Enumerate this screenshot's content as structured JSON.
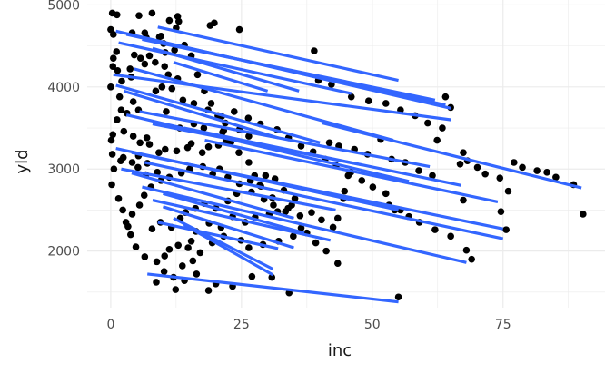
{
  "chart_data": {
    "type": "scatter",
    "xlabel": "inc",
    "ylabel": "yld",
    "xlim": [
      -4.5,
      94.5
    ],
    "ylim": [
      1310,
      5060
    ],
    "grid": true,
    "legend": "none",
    "x_ticks": [
      0,
      25,
      50,
      75
    ],
    "y_ticks": [
      2000,
      3000,
      4000,
      5000
    ],
    "x_tick_labels": [
      "0",
      "25",
      "50",
      "75"
    ],
    "y_tick_labels": [
      "2000",
      "3000",
      "4000",
      "5000"
    ],
    "point_color": "#000000",
    "line_color": "#3366FF",
    "panel_background": "#FFFFFF",
    "grid_color": "#EBEBEB",
    "points": [
      [
        0.3,
        4900
      ],
      [
        1.2,
        4880
      ],
      [
        5.4,
        4870
      ],
      [
        7.9,
        4900
      ],
      [
        12.8,
        4860
      ],
      [
        13,
        4800
      ],
      [
        19.8,
        4780
      ],
      [
        19,
        4750
      ],
      [
        24.6,
        4700
      ],
      [
        0,
        4700
      ],
      [
        0.5,
        4640
      ],
      [
        4.1,
        4660
      ],
      [
        6.5,
        4660
      ],
      [
        6.8,
        4600
      ],
      [
        9.3,
        4610
      ],
      [
        9.6,
        4620
      ],
      [
        10.1,
        4530
      ],
      [
        12.2,
        4450
      ],
      [
        10.4,
        4420
      ],
      [
        7.4,
        4380
      ],
      [
        4.5,
        4390
      ],
      [
        5.7,
        4350
      ],
      [
        1.1,
        4430
      ],
      [
        0.5,
        4350
      ],
      [
        0.4,
        4250
      ],
      [
        1.3,
        4200
      ],
      [
        3.7,
        4220
      ],
      [
        6.5,
        4280
      ],
      [
        8.5,
        4300
      ],
      [
        10.3,
        4250
      ],
      [
        11,
        4150
      ],
      [
        12.8,
        4100
      ],
      [
        9.8,
        4000
      ],
      [
        11.7,
        3980
      ],
      [
        8.6,
        3950
      ],
      [
        3.9,
        4120
      ],
      [
        2.1,
        4070
      ],
      [
        0,
        4000
      ],
      [
        1.7,
        3880
      ],
      [
        4.3,
        3820
      ],
      [
        5.3,
        3720
      ],
      [
        2,
        3720
      ],
      [
        3.1,
        3680
      ],
      [
        1.2,
        3600
      ],
      [
        10.6,
        3700
      ],
      [
        13.2,
        3500
      ],
      [
        15.9,
        3550
      ],
      [
        17.8,
        3500
      ],
      [
        21.4,
        3450
      ],
      [
        21.9,
        3560
      ],
      [
        24.6,
        3480
      ],
      [
        26.4,
        3400
      ],
      [
        22,
        3330
      ],
      [
        20.6,
        3290
      ],
      [
        18.7,
        3270
      ],
      [
        17.5,
        3200
      ],
      [
        15.4,
        3310
      ],
      [
        14.7,
        3260
      ],
      [
        12.6,
        3220
      ],
      [
        10.4,
        3240
      ],
      [
        9.2,
        3200
      ],
      [
        7.4,
        3300
      ],
      [
        6.9,
        3380
      ],
      [
        5.6,
        3320
      ],
      [
        4.3,
        3400
      ],
      [
        2.5,
        3460
      ],
      [
        0.4,
        3420
      ],
      [
        0.1,
        3350
      ],
      [
        0.3,
        3180
      ],
      [
        1.9,
        3100
      ],
      [
        4.1,
        3080
      ],
      [
        5.2,
        3020
      ],
      [
        6.7,
        2930
      ],
      [
        8.9,
        2960
      ],
      [
        9.6,
        2860
      ],
      [
        11.2,
        2900
      ],
      [
        13.5,
        2950
      ],
      [
        15.1,
        3000
      ],
      [
        17.6,
        3030
      ],
      [
        19.5,
        2940
      ],
      [
        20.8,
        3000
      ],
      [
        22.4,
        2900
      ],
      [
        24.6,
        2820
      ],
      [
        26.7,
        2860
      ],
      [
        28.5,
        2800
      ],
      [
        29.6,
        2920
      ],
      [
        31.4,
        2880
      ],
      [
        33.1,
        2740
      ],
      [
        35.2,
        2640
      ],
      [
        34.6,
        2560
      ],
      [
        31.9,
        2480
      ],
      [
        30.3,
        2450
      ],
      [
        27.6,
        2410
      ],
      [
        25.7,
        2350
      ],
      [
        23.3,
        2420
      ],
      [
        21.1,
        2290
      ],
      [
        18.8,
        2340
      ],
      [
        16.3,
        2240
      ],
      [
        15.4,
        2120
      ],
      [
        14.8,
        2040
      ],
      [
        12.9,
        2070
      ],
      [
        11.2,
        2020
      ],
      [
        10.3,
        1940
      ],
      [
        8.8,
        1870
      ],
      [
        6.5,
        1930
      ],
      [
        4.8,
        2050
      ],
      [
        3.8,
        2200
      ],
      [
        2.9,
        2350
      ],
      [
        2.3,
        2500
      ],
      [
        1.5,
        2640
      ],
      [
        0.2,
        2810
      ],
      [
        0.6,
        3000
      ],
      [
        2.4,
        3140
      ],
      [
        5.3,
        3160
      ],
      [
        7,
        3070
      ],
      [
        7.7,
        2780
      ],
      [
        6.4,
        2680
      ],
      [
        5.5,
        2560
      ],
      [
        4.1,
        2450
      ],
      [
        3.3,
        2300
      ],
      [
        7.9,
        2270
      ],
      [
        9.5,
        2350
      ],
      [
        11.6,
        2290
      ],
      [
        13.3,
        2400
      ],
      [
        14.3,
        2470
      ],
      [
        16.2,
        2520
      ],
      [
        17.9,
        2580
      ],
      [
        20.1,
        2520
      ],
      [
        22.4,
        2610
      ],
      [
        24.1,
        2700
      ],
      [
        26.9,
        2720
      ],
      [
        29.3,
        2630
      ],
      [
        31.1,
        2560
      ],
      [
        33.9,
        2520
      ],
      [
        36.2,
        2430
      ],
      [
        38.4,
        2470
      ],
      [
        40.3,
        2380
      ],
      [
        42.5,
        2290
      ],
      [
        43.4,
        2400
      ],
      [
        37.5,
        2220
      ],
      [
        34.9,
        2180
      ],
      [
        32.1,
        2120
      ],
      [
        29.1,
        2080
      ],
      [
        26.4,
        2040
      ],
      [
        24.9,
        2130
      ],
      [
        21.6,
        2180
      ],
      [
        19.4,
        2100
      ],
      [
        17.1,
        1980
      ],
      [
        15.7,
        1880
      ],
      [
        13.7,
        1820
      ],
      [
        12,
        1680
      ],
      [
        10.2,
        1750
      ],
      [
        8.7,
        1620
      ],
      [
        12.4,
        1530
      ],
      [
        18.7,
        1520
      ],
      [
        14.1,
        1640
      ],
      [
        16.4,
        1720
      ],
      [
        20.1,
        1600
      ],
      [
        23.3,
        1570
      ],
      [
        27,
        1690
      ],
      [
        30.8,
        1680
      ],
      [
        34.1,
        1490
      ],
      [
        55,
        1440
      ],
      [
        43.4,
        1850
      ],
      [
        41.2,
        2000
      ],
      [
        39.2,
        2100
      ],
      [
        36.4,
        2280
      ],
      [
        33.4,
        2480
      ],
      [
        30.9,
        2650
      ],
      [
        28.7,
        2790
      ],
      [
        27.5,
        2920
      ],
      [
        26.4,
        3080
      ],
      [
        24.5,
        3200
      ],
      [
        23,
        3330
      ],
      [
        21.6,
        3470
      ],
      [
        20.5,
        3650
      ],
      [
        19.2,
        3800
      ],
      [
        17.9,
        3950
      ],
      [
        16.6,
        4150
      ],
      [
        15.4,
        4380
      ],
      [
        14.1,
        4510
      ],
      [
        12.5,
        4720
      ],
      [
        11.2,
        4810
      ],
      [
        13.8,
        3840
      ],
      [
        15.9,
        3800
      ],
      [
        18.6,
        3720
      ],
      [
        21.2,
        3640
      ],
      [
        23.6,
        3700
      ],
      [
        26.3,
        3620
      ],
      [
        28.6,
        3550
      ],
      [
        31.8,
        3480
      ],
      [
        34,
        3380
      ],
      [
        36.4,
        3280
      ],
      [
        38.7,
        3210
      ],
      [
        41,
        3120
      ],
      [
        43.1,
        3040
      ],
      [
        45.9,
        2960
      ],
      [
        48,
        2860
      ],
      [
        50.1,
        2780
      ],
      [
        52.6,
        2700
      ],
      [
        55.4,
        2500
      ],
      [
        57,
        2420
      ],
      [
        59,
        2350
      ],
      [
        62,
        2260
      ],
      [
        65,
        2180
      ],
      [
        68,
        2010
      ],
      [
        69,
        1900
      ],
      [
        38.9,
        4440
      ],
      [
        39.7,
        4080
      ],
      [
        42.2,
        4030
      ],
      [
        46,
        3880
      ],
      [
        49.3,
        3830
      ],
      [
        52.6,
        3800
      ],
      [
        55.4,
        3720
      ],
      [
        58.2,
        3650
      ],
      [
        60.6,
        3560
      ],
      [
        63.4,
        3500
      ],
      [
        65,
        3750
      ],
      [
        64,
        3880
      ],
      [
        62.4,
        3350
      ],
      [
        67.4,
        3200
      ],
      [
        68.2,
        3100
      ],
      [
        70.1,
        3020
      ],
      [
        71.6,
        2940
      ],
      [
        74.4,
        2890
      ],
      [
        76,
        2730
      ],
      [
        77.1,
        3080
      ],
      [
        78.7,
        3020
      ],
      [
        81.5,
        2980
      ],
      [
        83.4,
        2960
      ],
      [
        85.1,
        2900
      ],
      [
        88.5,
        2810
      ],
      [
        90.3,
        2450
      ],
      [
        74.6,
        2480
      ],
      [
        75.6,
        2260
      ],
      [
        41.8,
        3320
      ],
      [
        43.6,
        3280
      ],
      [
        46.6,
        3240
      ],
      [
        49.1,
        3180
      ],
      [
        51.6,
        3360
      ],
      [
        53.7,
        3120
      ],
      [
        56.3,
        3080
      ],
      [
        58.9,
        2980
      ],
      [
        61.5,
        2920
      ],
      [
        66.8,
        3060
      ],
      [
        67.4,
        2620
      ],
      [
        53.2,
        2560
      ],
      [
        54.3,
        2500
      ],
      [
        44.5,
        2640
      ],
      [
        44.7,
        2730
      ],
      [
        45.4,
        2920
      ]
    ],
    "fit_lines": [
      [
        [
          1.0,
          4680
        ],
        [
          65,
          3740
        ]
      ],
      [
        [
          3.0,
          4640
        ],
        [
          64,
          3780
        ]
      ],
      [
        [
          6.0,
          4580
        ],
        [
          62,
          3840
        ]
      ],
      [
        [
          9.0,
          4730
        ],
        [
          55,
          4080
        ]
      ],
      [
        [
          1.5,
          4540
        ],
        [
          46,
          3920
        ]
      ],
      [
        [
          8.0,
          4470
        ],
        [
          36,
          3950
        ]
      ],
      [
        [
          12.0,
          4300
        ],
        [
          30,
          3950
        ]
      ],
      [
        [
          0.5,
          4150
        ],
        [
          65,
          3600
        ]
      ],
      [
        [
          4.5,
          4220
        ],
        [
          54,
          3350
        ]
      ],
      [
        [
          1.0,
          4020
        ],
        [
          40,
          3320
        ]
      ],
      [
        [
          2.5,
          3950
        ],
        [
          32,
          3380
        ]
      ],
      [
        [
          5.5,
          3700
        ],
        [
          61,
          3030
        ]
      ],
      [
        [
          40.5,
          3560
        ],
        [
          90,
          2770
        ]
      ],
      [
        [
          3.0,
          3660
        ],
        [
          57,
          2850
        ]
      ],
      [
        [
          8.0,
          3550
        ],
        [
          48,
          3050
        ]
      ],
      [
        [
          14.0,
          3500
        ],
        [
          67,
          2800
        ]
      ],
      [
        [
          18.0,
          3350
        ],
        [
          74,
          2600
        ]
      ],
      [
        [
          1.0,
          3250
        ],
        [
          55,
          2500
        ]
      ],
      [
        [
          4.0,
          3200
        ],
        [
          75,
          2270
        ]
      ],
      [
        [
          6.5,
          3080
        ],
        [
          75,
          2150
        ]
      ],
      [
        [
          2.0,
          3000
        ],
        [
          43,
          2500
        ]
      ],
      [
        [
          4.0,
          2950
        ],
        [
          35,
          2400
        ]
      ],
      [
        [
          6.0,
          2780
        ],
        [
          68,
          1860
        ]
      ],
      [
        [
          8.0,
          2620
        ],
        [
          42,
          2130
        ]
      ],
      [
        [
          10.0,
          2700
        ],
        [
          37,
          2220
        ]
      ],
      [
        [
          10.0,
          2540
        ],
        [
          35,
          2040
        ]
      ],
      [
        [
          12.0,
          2400
        ],
        [
          31,
          1780
        ]
      ],
      [
        [
          9.0,
          2350
        ],
        [
          32,
          2030
        ]
      ],
      [
        [
          14.0,
          2320
        ],
        [
          31,
          1710
        ]
      ],
      [
        [
          7.0,
          1720
        ],
        [
          55,
          1380
        ]
      ]
    ]
  }
}
